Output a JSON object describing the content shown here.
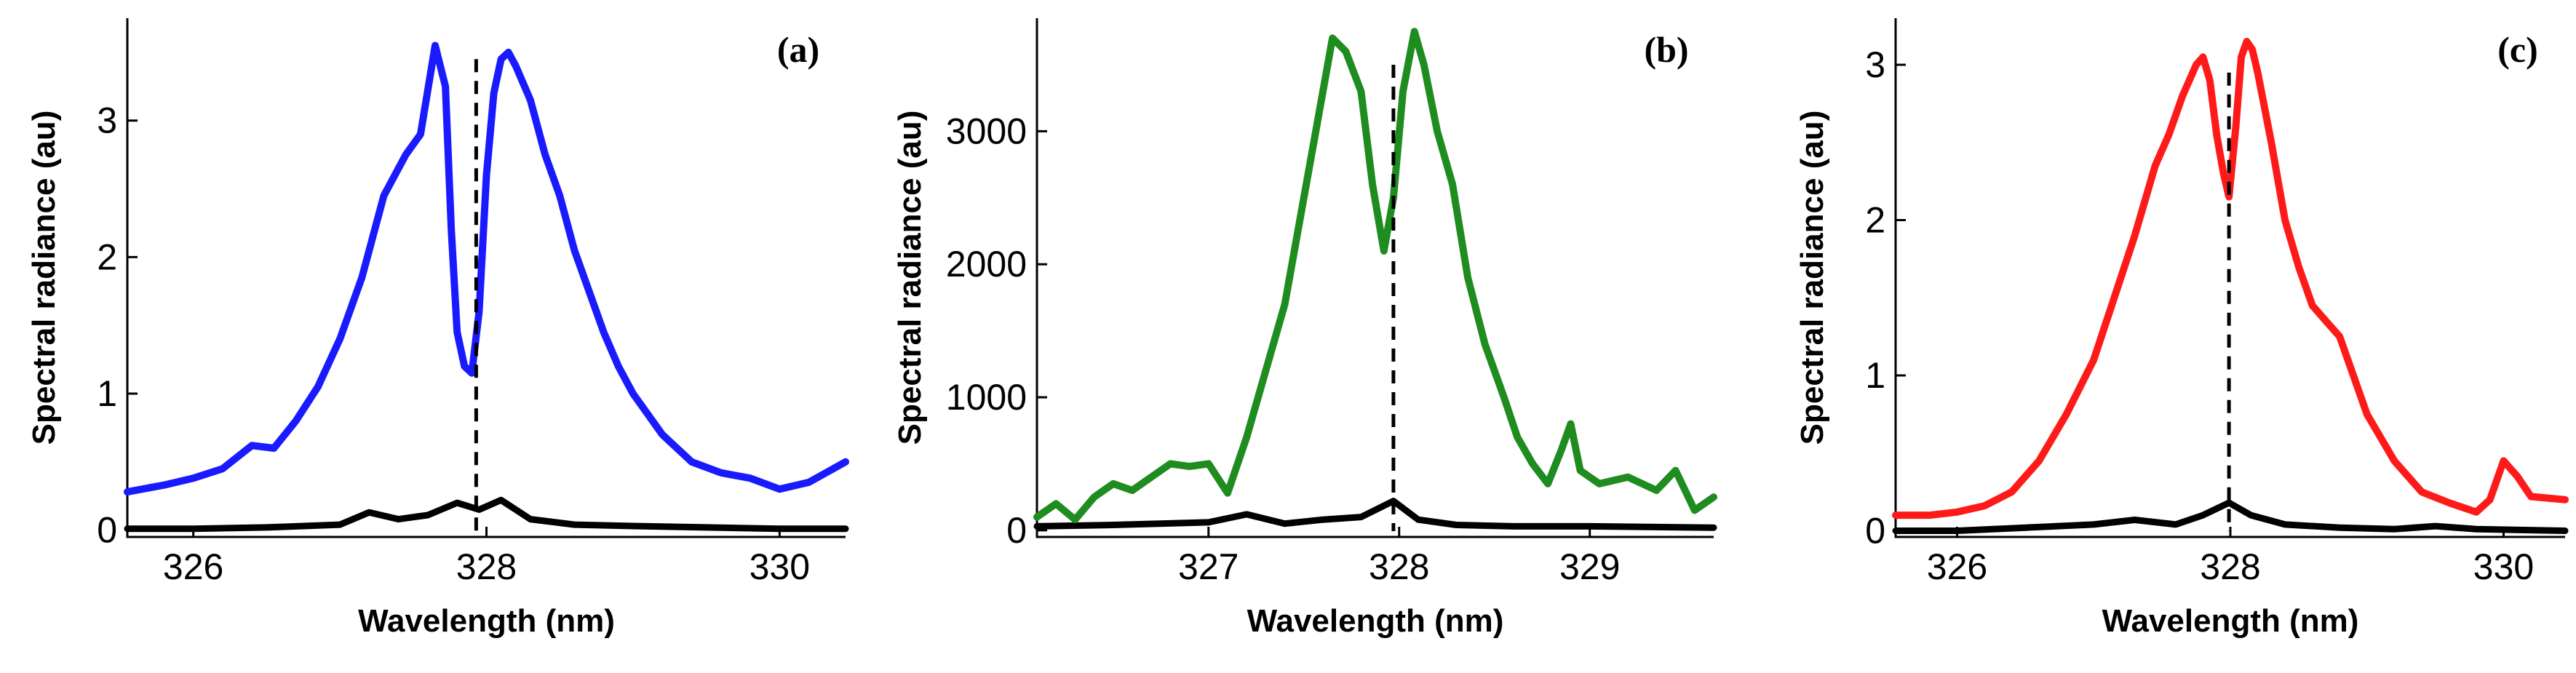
{
  "chart_data": [
    {
      "type": "line",
      "panel_label": "(a)",
      "xlabel": "Wavelength (nm)",
      "ylabel": "Spectral radiance (au)",
      "xlim": [
        325.55,
        330.45
      ],
      "ylim": [
        -0.05,
        3.75
      ],
      "xticks": [
        326,
        328,
        330
      ],
      "yticks": [
        0,
        1,
        2,
        3
      ],
      "dashed_x": 327.93,
      "dashed_y_top": 3.45,
      "colors": {
        "main": "#1a1aff",
        "background": "#000000"
      },
      "series": [
        {
          "role": "main",
          "x": [
            325.55,
            325.8,
            326.0,
            326.2,
            326.4,
            326.55,
            326.7,
            326.85,
            327.0,
            327.15,
            327.3,
            327.45,
            327.55,
            327.65,
            327.72,
            327.76,
            327.8,
            327.85,
            327.9,
            327.95,
            328.0,
            328.05,
            328.1,
            328.15,
            328.2,
            328.3,
            328.4,
            328.5,
            328.6,
            328.7,
            328.8,
            328.9,
            329.0,
            329.2,
            329.4,
            329.6,
            329.8,
            330.0,
            330.2,
            330.45
          ],
          "y": [
            0.28,
            0.33,
            0.38,
            0.45,
            0.62,
            0.6,
            0.8,
            1.05,
            1.4,
            1.85,
            2.45,
            2.75,
            2.9,
            3.55,
            3.25,
            2.2,
            1.45,
            1.2,
            1.15,
            1.6,
            2.6,
            3.2,
            3.45,
            3.5,
            3.4,
            3.15,
            2.75,
            2.45,
            2.05,
            1.75,
            1.45,
            1.2,
            1.0,
            0.7,
            0.5,
            0.42,
            0.38,
            0.3,
            0.35,
            0.5
          ]
        },
        {
          "role": "background",
          "x": [
            325.55,
            326.0,
            326.5,
            327.0,
            327.2,
            327.4,
            327.6,
            327.8,
            327.95,
            328.1,
            328.3,
            328.6,
            329.0,
            329.5,
            330.0,
            330.45
          ],
          "y": [
            0.01,
            0.01,
            0.02,
            0.04,
            0.13,
            0.08,
            0.11,
            0.2,
            0.15,
            0.22,
            0.08,
            0.04,
            0.03,
            0.02,
            0.01,
            0.01
          ]
        }
      ]
    },
    {
      "type": "line",
      "panel_label": "(b)",
      "xlabel": "Wavelength (nm)",
      "ylabel": "Spectral radiance (au)",
      "xlim": [
        326.1,
        329.65
      ],
      "ylim": [
        -50,
        3850
      ],
      "xticks": [
        327,
        328,
        329
      ],
      "yticks": [
        0,
        1000,
        2000,
        3000
      ],
      "dashed_x": 327.97,
      "dashed_y_top": 3500,
      "colors": {
        "main": "#1f8c1f",
        "background": "#000000"
      },
      "series": [
        {
          "role": "main",
          "x": [
            326.1,
            326.2,
            326.3,
            326.4,
            326.5,
            326.6,
            326.7,
            326.8,
            326.9,
            327.0,
            327.1,
            327.2,
            327.3,
            327.4,
            327.5,
            327.6,
            327.65,
            327.72,
            327.8,
            327.86,
            327.92,
            327.97,
            328.02,
            328.08,
            328.13,
            328.2,
            328.28,
            328.36,
            328.45,
            328.55,
            328.62,
            328.7,
            328.78,
            328.85,
            328.9,
            328.95,
            329.05,
            329.2,
            329.35,
            329.45,
            329.55,
            329.65
          ],
          "y": [
            100,
            200,
            80,
            250,
            350,
            300,
            400,
            500,
            480,
            500,
            280,
            700,
            1200,
            1700,
            2500,
            3300,
            3700,
            3600,
            3300,
            2600,
            2100,
            2500,
            3300,
            3750,
            3500,
            3000,
            2600,
            1900,
            1400,
            1000,
            700,
            500,
            350,
            600,
            800,
            450,
            350,
            400,
            300,
            450,
            150,
            250
          ]
        },
        {
          "role": "background",
          "x": [
            326.1,
            326.5,
            327.0,
            327.2,
            327.4,
            327.6,
            327.8,
            327.97,
            328.1,
            328.3,
            328.6,
            329.0,
            329.65
          ],
          "y": [
            30,
            40,
            60,
            120,
            50,
            80,
            100,
            220,
            80,
            40,
            30,
            30,
            20
          ]
        }
      ]
    },
    {
      "type": "line",
      "panel_label": "(c)",
      "xlabel": "Wavelength (nm)",
      "ylabel": "Spectral radiance (au)",
      "xlim": [
        325.55,
        330.45
      ],
      "ylim": [
        -0.04,
        3.3
      ],
      "xticks": [
        326,
        328,
        330
      ],
      "yticks": [
        0,
        1,
        2,
        3
      ],
      "dashed_x": 327.99,
      "dashed_y_top": 2.95,
      "colors": {
        "main": "#ff1a1a",
        "background": "#000000"
      },
      "series": [
        {
          "role": "main",
          "x": [
            325.55,
            325.8,
            326.0,
            326.2,
            326.4,
            326.6,
            326.8,
            327.0,
            327.15,
            327.3,
            327.45,
            327.55,
            327.65,
            327.75,
            327.8,
            327.85,
            327.9,
            327.95,
            327.99,
            328.04,
            328.08,
            328.12,
            328.16,
            328.2,
            328.3,
            328.4,
            328.5,
            328.6,
            328.7,
            328.8,
            328.9,
            329.0,
            329.2,
            329.4,
            329.6,
            329.8,
            329.9,
            330.0,
            330.1,
            330.2,
            330.45
          ],
          "y": [
            0.1,
            0.1,
            0.12,
            0.16,
            0.25,
            0.45,
            0.75,
            1.1,
            1.5,
            1.9,
            2.35,
            2.55,
            2.8,
            3.0,
            3.05,
            2.9,
            2.55,
            2.3,
            2.15,
            2.6,
            3.05,
            3.15,
            3.1,
            2.95,
            2.5,
            2.0,
            1.7,
            1.45,
            1.35,
            1.25,
            1.0,
            0.75,
            0.45,
            0.25,
            0.18,
            0.12,
            0.2,
            0.45,
            0.35,
            0.22,
            0.2
          ]
        },
        {
          "role": "background",
          "x": [
            325.55,
            326.0,
            326.5,
            327.0,
            327.3,
            327.6,
            327.8,
            327.99,
            328.15,
            328.4,
            328.8,
            329.2,
            329.5,
            329.8,
            330.45
          ],
          "y": [
            0.0,
            0.0,
            0.02,
            0.04,
            0.07,
            0.04,
            0.1,
            0.18,
            0.1,
            0.04,
            0.02,
            0.01,
            0.03,
            0.01,
            0.0
          ]
        }
      ]
    }
  ]
}
